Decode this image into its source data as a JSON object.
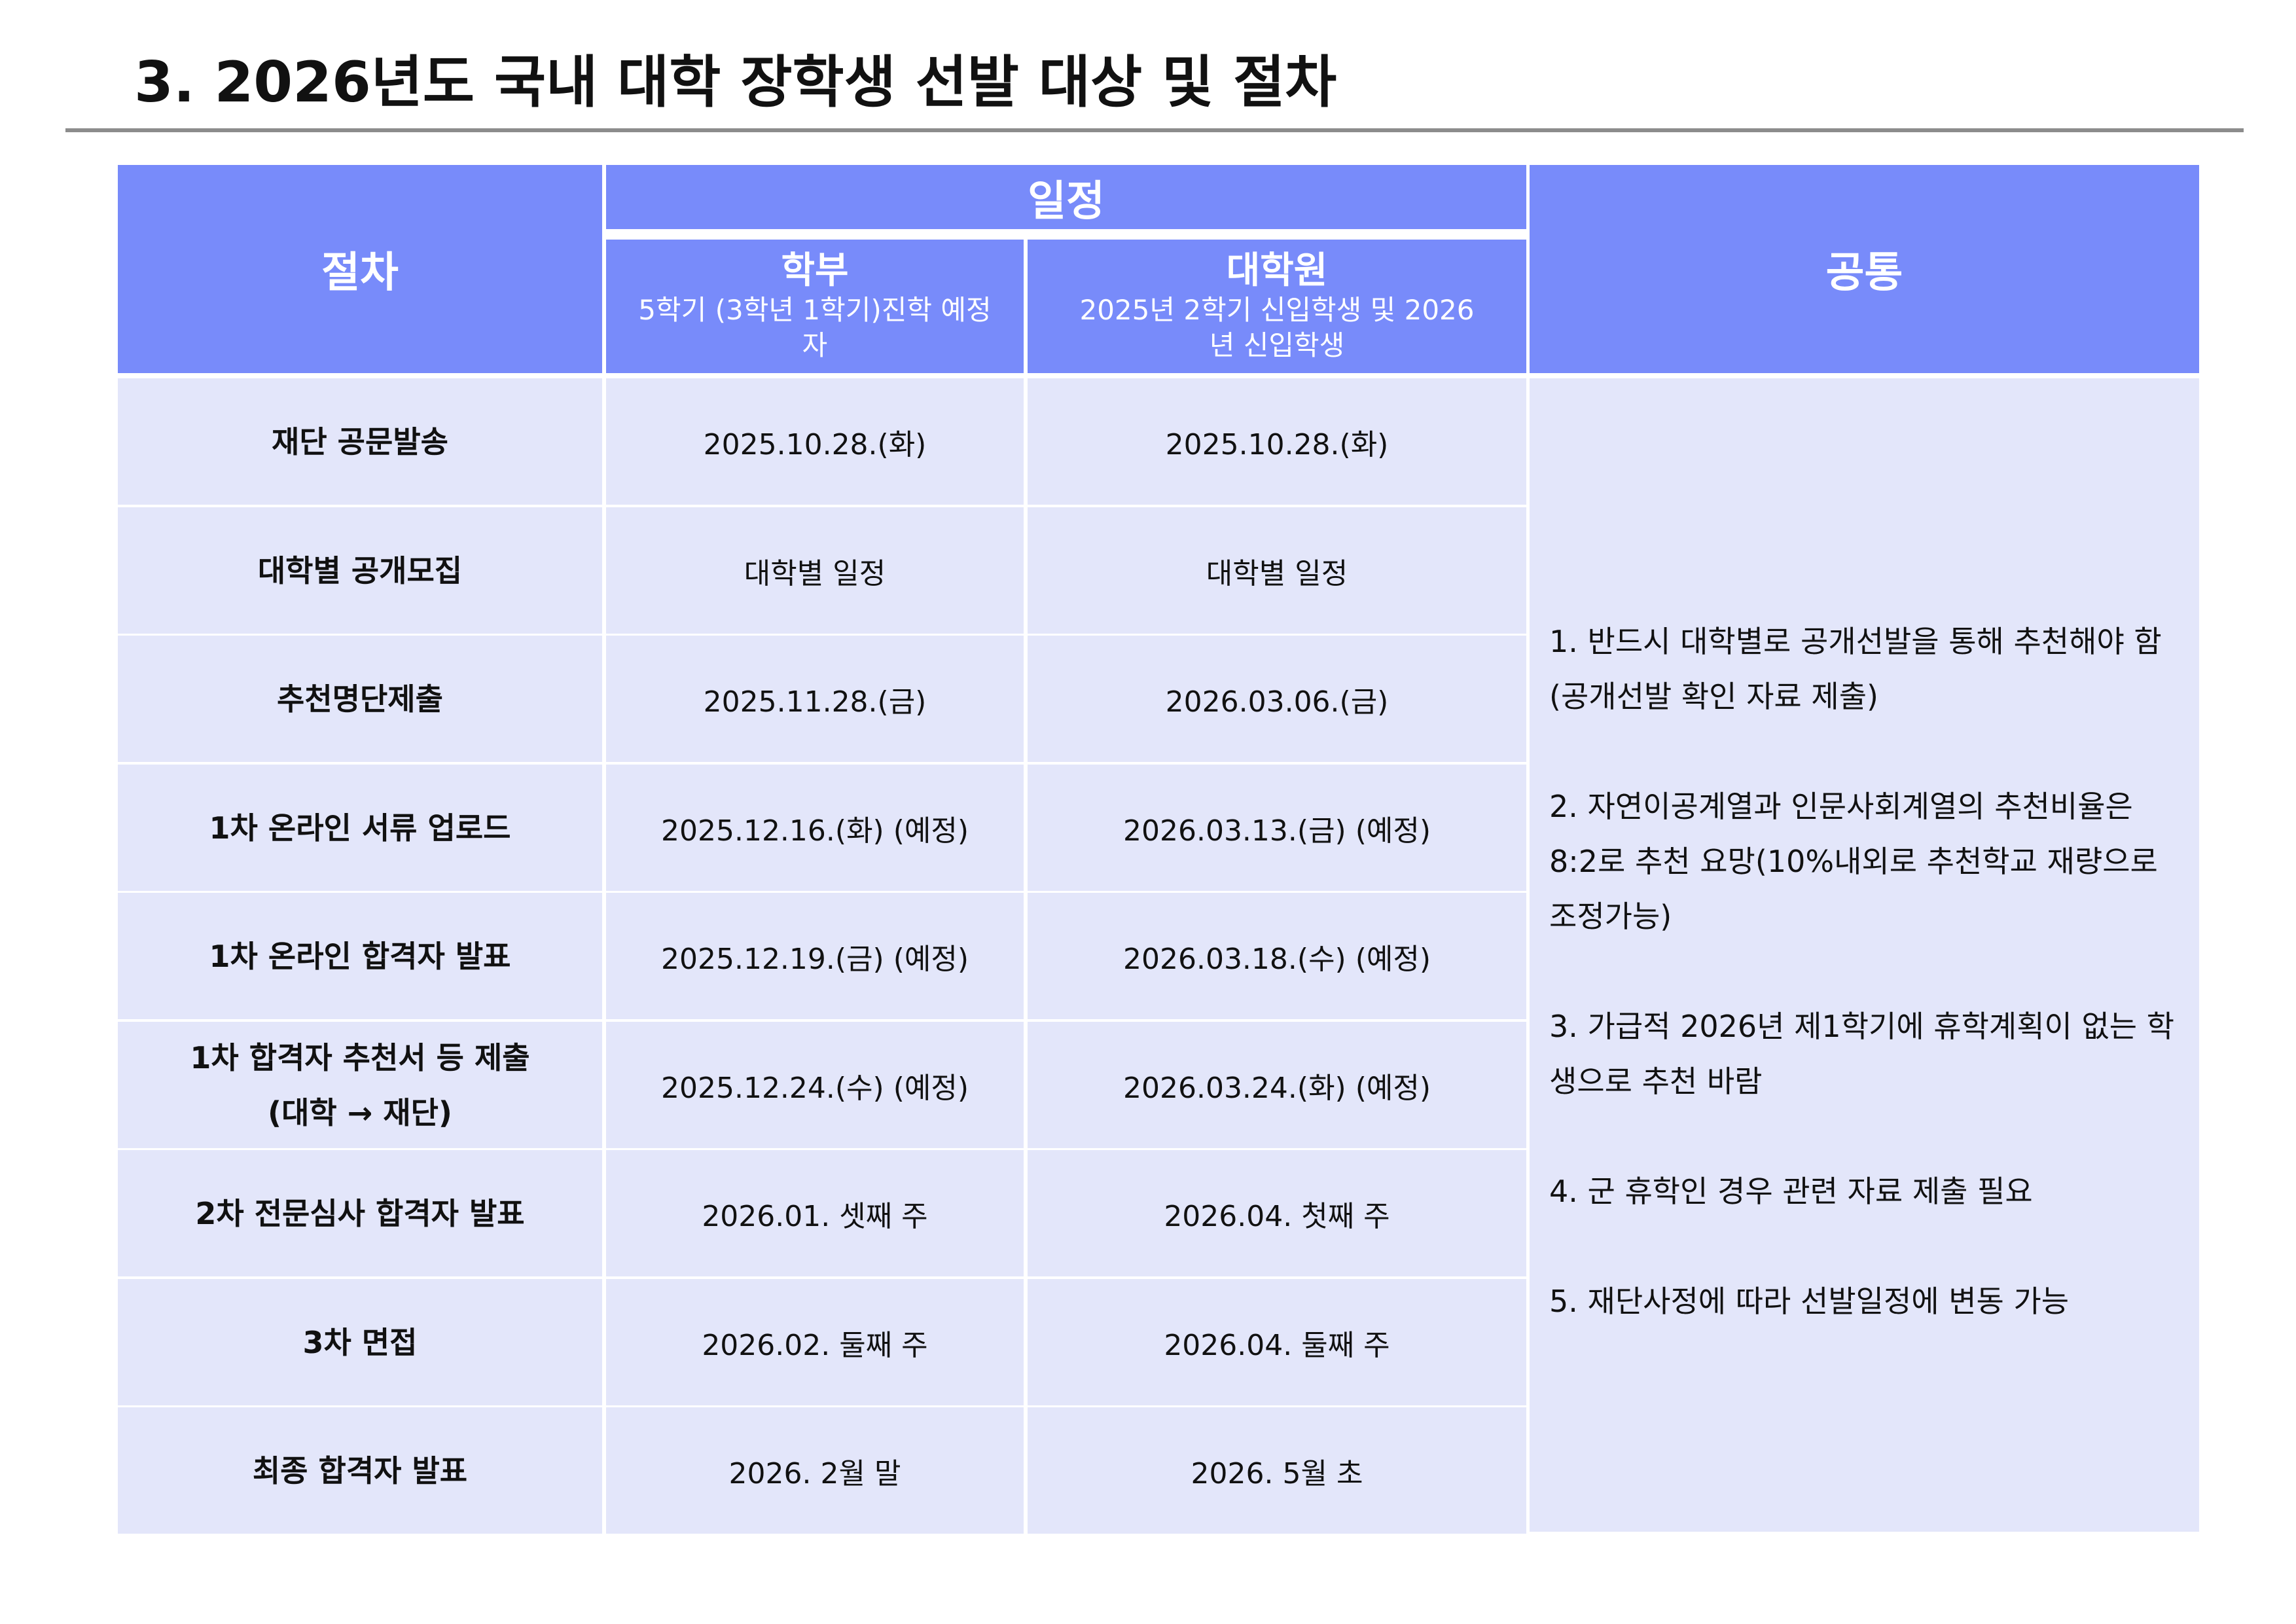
{
  "page": {
    "title": "3. 2026년도 국내 대학 장학생 선발 대상 및 절차"
  },
  "table": {
    "header": {
      "procedure": "절차",
      "schedule": "일정",
      "undergrad": {
        "title": "학부",
        "desc": "5학기 (3학년 1학기)진학 예정자"
      },
      "grad": {
        "title": "대학원",
        "desc": "2025년 2학기 신입학생 및 2026년 신입학생"
      },
      "common": "공통"
    },
    "rows": [
      {
        "procedure": [
          "재단 공문발송"
        ],
        "undergrad": "2025.10.28.(화)",
        "grad": "2025.10.28.(화)"
      },
      {
        "procedure": [
          "대학별 공개모집"
        ],
        "undergrad": "대학별 일정",
        "grad": "대학별 일정"
      },
      {
        "procedure": [
          "추천명단제출"
        ],
        "undergrad": "2025.11.28.(금)",
        "grad": "2026.03.06.(금)"
      },
      {
        "procedure": [
          "1차 온라인 서류 업로드"
        ],
        "undergrad": "2025.12.16.(화) (예정)",
        "grad": "2026.03.13.(금) (예정)"
      },
      {
        "procedure": [
          "1차 온라인 합격자 발표"
        ],
        "undergrad": "2025.12.19.(금) (예정)",
        "grad": "2026.03.18.(수) (예정)"
      },
      {
        "procedure": [
          "1차 합격자 추천서 등 제출",
          "(대학 → 재단)"
        ],
        "undergrad": "2025.12.24.(수) (예정)",
        "grad": "2026.03.24.(화) (예정)"
      },
      {
        "procedure": [
          "2차 전문심사 합격자 발표"
        ],
        "undergrad": "2026.01. 셋째 주",
        "grad": "2026.04. 첫째 주"
      },
      {
        "procedure": [
          "3차 면접"
        ],
        "undergrad": "2026.02. 둘째 주",
        "grad": "2026.04. 둘째 주"
      },
      {
        "procedure": [
          "최종 합격자 발표"
        ],
        "undergrad": "2026. 2월 말",
        "grad": "2026. 5월 초"
      }
    ],
    "common_notes": [
      "1. 반드시 대학별로 공개선발을 통해 추천해야 함(공개선발 확인 자료 제출)",
      "2. 자연이공계열과 인문사회계열의 추천비율은 8:2로 추천 요망(10%내외로 추천학교 재량으로 조정가능)",
      "3. 가급적 2026년 제1학기에 휴학계획이 없는 학생으로 추천 바람",
      "4. 군 휴학인 경우 관련 자료 제출 필요",
      "5. 재단사정에 따라 선발일정에 변동 가능"
    ]
  },
  "colors": {
    "header_bg": "#788bfa",
    "body_bg": "#e3e6fa",
    "rule": "#8c8c8c"
  }
}
